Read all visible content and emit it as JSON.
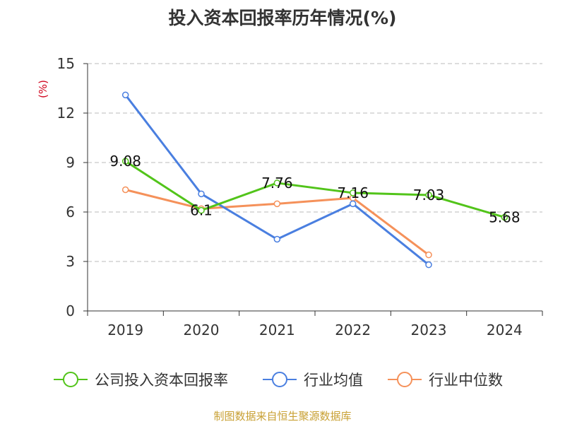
{
  "chart_data": {
    "type": "line",
    "title": "投入资本回报率历年情况(%)",
    "ylabel": "(%)",
    "xlabel": "",
    "categories": [
      "2019",
      "2020",
      "2021",
      "2022",
      "2023",
      "2024"
    ],
    "ylim": [
      0,
      15
    ],
    "yticks": [
      0,
      3,
      6,
      9,
      12,
      15
    ],
    "grid": "horizontal dashed",
    "legend_position": "bottom",
    "series": [
      {
        "name": "公司投入资本回报率",
        "color": "#52c41a",
        "values": [
          9.08,
          6.1,
          7.76,
          7.16,
          7.03,
          5.68
        ],
        "labels": [
          "9.08",
          "6.1",
          "7.76",
          "7.16",
          "7.03",
          "5.68"
        ]
      },
      {
        "name": "行业均值",
        "color": "#4a7fe0",
        "values": [
          13.1,
          7.1,
          4.35,
          6.5,
          2.8,
          null
        ]
      },
      {
        "name": "行业中位数",
        "color": "#f5915a",
        "values": [
          7.35,
          6.2,
          6.5,
          6.85,
          3.4,
          null
        ]
      }
    ]
  },
  "source": "制图数据来自恒生聚源数据库"
}
